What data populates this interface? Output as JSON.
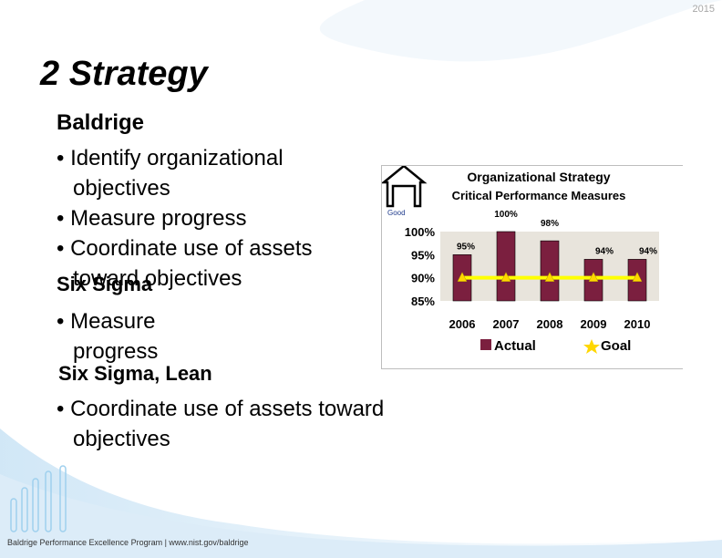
{
  "slide": {
    "year": "2015",
    "title": "2  Strategy",
    "footer": "Baldrige Performance Excellence Program | www.nist.gov/baldrige"
  },
  "body": {
    "baldrige_header": "Baldrige",
    "baldrige_b1": "• Identify organizational",
    "baldrige_b1_cont": "objectives",
    "baldrige_b2": "• Measure progress",
    "baldrige_b3": "• Coordinate use of assets",
    "baldrige_b3_cont": "toward objectives",
    "six_sigma_header": "Six Sigma",
    "six_sigma_b1": "• Measure",
    "six_sigma_b1_cont": "progress",
    "ssl_header": "Six Sigma, Lean",
    "ssl_b1": "• Coordinate use of assets toward",
    "ssl_b1_cont": "objectives"
  },
  "chart_data": {
    "type": "bar",
    "title": "Organizational Strategy",
    "subtitle": "Critical Performance Measures",
    "good_label": "Good",
    "categories": [
      "2006",
      "2007",
      "2008",
      "2009",
      "2010"
    ],
    "ylim": [
      85,
      100
    ],
    "ytick_labels": [
      "100%",
      "95%",
      "90%",
      "85%"
    ],
    "yticks": [
      100,
      95,
      90,
      85
    ],
    "series": [
      {
        "name": "Actual",
        "values": [
          95,
          100,
          98,
          94,
          94
        ],
        "color": "#7b1f3f"
      },
      {
        "name": "Goal",
        "values": [
          90,
          90,
          90,
          90,
          90
        ],
        "color": "#ffff00"
      }
    ],
    "data_labels": [
      "95%",
      "100%",
      "98%",
      "94%",
      "94%"
    ],
    "legend_position": "bottom",
    "background": "#e8e4dc"
  }
}
